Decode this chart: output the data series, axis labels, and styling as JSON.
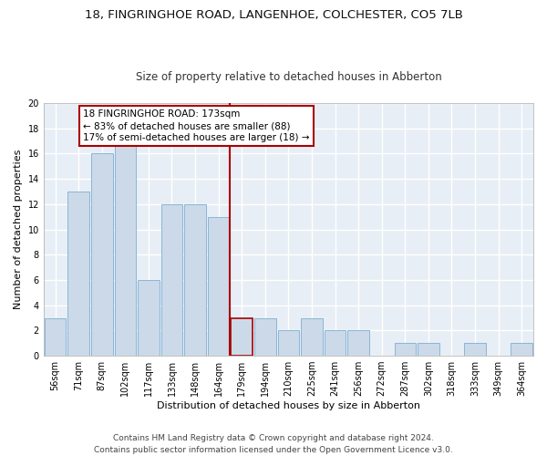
{
  "title1": "18, FINGRINGHOE ROAD, LANGENHOE, COLCHESTER, CO5 7LB",
  "title2": "Size of property relative to detached houses in Abberton",
  "xlabel": "Distribution of detached houses by size in Abberton",
  "ylabel": "Number of detached properties",
  "footer": "Contains HM Land Registry data © Crown copyright and database right 2024.\nContains public sector information licensed under the Open Government Licence v3.0.",
  "categories": [
    "56sqm",
    "71sqm",
    "87sqm",
    "102sqm",
    "117sqm",
    "133sqm",
    "148sqm",
    "164sqm",
    "179sqm",
    "194sqm",
    "210sqm",
    "225sqm",
    "241sqm",
    "256sqm",
    "272sqm",
    "287sqm",
    "302sqm",
    "318sqm",
    "333sqm",
    "349sqm",
    "364sqm"
  ],
  "values": [
    3,
    13,
    16,
    17,
    6,
    12,
    12,
    11,
    3,
    3,
    2,
    3,
    2,
    2,
    0,
    1,
    1,
    0,
    1,
    0,
    1
  ],
  "bar_color": "#ccd9e8",
  "bar_edge_color": "#7bafd4",
  "highlight_bar_index": 8,
  "highlight_bar_edge_color": "#aa0000",
  "vline_color": "#aa0000",
  "annotation_box_color": "#aa0000",
  "annotation_text": "18 FINGRINGHOE ROAD: 173sqm\n← 83% of detached houses are smaller (88)\n17% of semi-detached houses are larger (18) →",
  "ylim": [
    0,
    20
  ],
  "yticks": [
    0,
    2,
    4,
    6,
    8,
    10,
    12,
    14,
    16,
    18,
    20
  ],
  "bg_color": "#e8eef5",
  "grid_color": "#ffffff",
  "fig_bg_color": "#ffffff",
  "title1_fontsize": 9.5,
  "title2_fontsize": 8.5,
  "xlabel_fontsize": 8,
  "ylabel_fontsize": 8,
  "tick_fontsize": 7,
  "annotation_fontsize": 7.5,
  "footer_fontsize": 6.5
}
